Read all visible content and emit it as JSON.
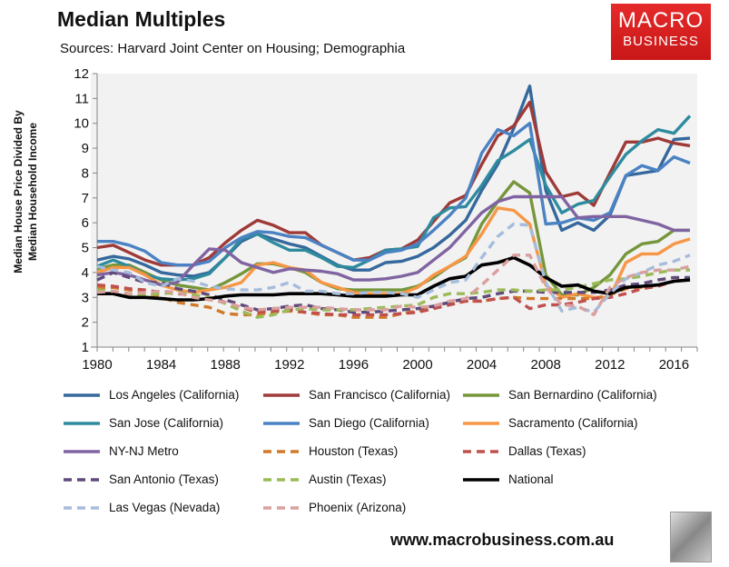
{
  "header": {
    "title": "Median Multiples",
    "subtitle": "Sources: Harvard Joint Center on Housing; Demographia"
  },
  "logo": {
    "line1": "MACRO",
    "line2": "BUSINESS",
    "color": "#d91f1f"
  },
  "footer": {
    "website": "www.macrobusiness.com.au",
    "wolf_icon": "wolf-logo"
  },
  "chart_data": {
    "type": "line",
    "title": "Median Multiples",
    "ylabel": "Median House Price Divided By Median Household Income",
    "xlabel": "",
    "ylim": [
      1,
      12
    ],
    "yticks": [
      "1",
      "2",
      "3",
      "4",
      "5",
      "6",
      "7",
      "8",
      "9",
      "10",
      "11",
      "12"
    ],
    "xticks": [
      "1980",
      "1984",
      "1988",
      "1992",
      "1996",
      "2000",
      "2004",
      "2008",
      "2012",
      "2016"
    ],
    "x": [
      1980,
      1981,
      1982,
      1983,
      1984,
      1985,
      1986,
      1987,
      1988,
      1989,
      1990,
      1991,
      1992,
      1993,
      1994,
      1995,
      1996,
      1997,
      1998,
      1999,
      2000,
      2001,
      2002,
      2003,
      2004,
      2005,
      2006,
      2007,
      2008,
      2009,
      2010,
      2011,
      2012,
      2013,
      2014,
      2015,
      2016,
      2017
    ],
    "grid": false,
    "legend_placement": "bottom",
    "series": [
      {
        "name": "Los Angeles (California)",
        "color": "#35689c",
        "dashed": false,
        "values": [
          4.5,
          4.65,
          4.55,
          4.3,
          4.0,
          3.9,
          3.85,
          4.0,
          4.6,
          5.25,
          5.55,
          5.35,
          5.15,
          5.0,
          4.65,
          4.3,
          4.1,
          4.1,
          4.4,
          4.45,
          4.65,
          5.0,
          5.5,
          6.1,
          7.3,
          8.35,
          9.8,
          11.5,
          7.3,
          5.7,
          6.0,
          5.7,
          6.3,
          7.9,
          8.0,
          8.1,
          9.35,
          9.4
        ]
      },
      {
        "name": "San Francisco (California)",
        "color": "#9e3a38",
        "dashed": false,
        "values": [
          5.0,
          5.1,
          4.8,
          4.5,
          4.3,
          4.3,
          4.3,
          4.6,
          5.2,
          5.7,
          6.1,
          5.9,
          5.6,
          5.6,
          5.1,
          4.8,
          4.5,
          4.6,
          4.9,
          4.95,
          5.3,
          6.05,
          6.8,
          7.1,
          8.35,
          9.5,
          9.9,
          10.85,
          8.05,
          7.05,
          7.2,
          6.7,
          8.0,
          9.25,
          9.25,
          9.4,
          9.2,
          9.1
        ]
      },
      {
        "name": "San Bernardino (California)",
        "color": "#76963c",
        "dashed": false,
        "values": [
          4.15,
          4.3,
          4.3,
          4.0,
          3.7,
          3.5,
          3.4,
          3.3,
          3.6,
          3.95,
          4.35,
          4.35,
          4.2,
          4.0,
          3.6,
          3.35,
          3.3,
          3.3,
          3.3,
          3.3,
          3.45,
          3.8,
          4.25,
          4.6,
          5.95,
          6.85,
          7.65,
          7.2,
          3.9,
          3.1,
          3.1,
          3.4,
          3.9,
          4.75,
          5.15,
          5.25,
          5.7,
          5.7
        ]
      },
      {
        "name": "San Jose (California)",
        "color": "#2e8b9e",
        "dashed": false,
        "values": [
          4.25,
          4.5,
          4.25,
          3.9,
          3.75,
          3.7,
          3.75,
          3.95,
          4.6,
          5.35,
          5.55,
          5.2,
          4.9,
          4.9,
          4.6,
          4.25,
          4.2,
          4.5,
          4.9,
          4.95,
          5.05,
          6.2,
          6.6,
          6.65,
          7.5,
          8.5,
          8.9,
          9.35,
          7.5,
          6.4,
          6.75,
          6.9,
          7.85,
          8.75,
          9.3,
          9.75,
          9.6,
          10.3
        ]
      },
      {
        "name": "San Diego (California)",
        "color": "#4a82c3",
        "dashed": false,
        "values": [
          5.25,
          5.25,
          5.1,
          4.85,
          4.4,
          4.3,
          4.3,
          4.45,
          5.0,
          5.4,
          5.65,
          5.6,
          5.45,
          5.4,
          5.1,
          4.8,
          4.5,
          4.5,
          4.8,
          4.9,
          5.15,
          5.7,
          6.3,
          7.0,
          8.8,
          9.75,
          9.5,
          10.0,
          5.95,
          6.0,
          6.2,
          6.1,
          6.4,
          7.9,
          8.3,
          8.1,
          8.65,
          8.4
        ]
      },
      {
        "name": "Sacramento (California)",
        "color": "#f79646",
        "dashed": false,
        "values": [
          4.0,
          4.2,
          4.2,
          3.9,
          3.5,
          3.3,
          3.2,
          3.3,
          3.4,
          3.6,
          4.3,
          4.4,
          4.2,
          4.1,
          3.6,
          3.4,
          3.2,
          3.15,
          3.15,
          3.15,
          3.4,
          3.9,
          4.25,
          4.65,
          5.55,
          6.6,
          6.5,
          5.95,
          3.5,
          3.0,
          3.15,
          3.0,
          3.0,
          4.4,
          4.75,
          4.75,
          5.15,
          5.35
        ]
      },
      {
        "name": "NY-NJ Metro",
        "color": "#8064a2",
        "dashed": false,
        "values": [
          3.9,
          4.0,
          3.9,
          3.7,
          3.5,
          3.6,
          4.3,
          4.95,
          4.9,
          4.4,
          4.2,
          4.0,
          4.15,
          4.1,
          4.05,
          3.95,
          3.7,
          3.7,
          3.75,
          3.85,
          4.0,
          4.5,
          5.0,
          5.7,
          6.4,
          6.85,
          7.05,
          7.05,
          7.05,
          7.05,
          6.2,
          6.25,
          6.25,
          6.25,
          6.1,
          5.95,
          5.7,
          5.7
        ]
      },
      {
        "name": "Houston (Texas)",
        "color": "#d07a2a",
        "dashed": true,
        "values": [
          3.4,
          3.4,
          3.3,
          3.2,
          3.0,
          2.8,
          2.7,
          2.6,
          2.35,
          2.3,
          2.3,
          2.4,
          2.45,
          2.4,
          2.3,
          2.3,
          2.2,
          2.2,
          2.2,
          2.35,
          2.45,
          2.6,
          2.8,
          2.85,
          2.85,
          2.95,
          3.0,
          2.95,
          2.95,
          2.95,
          2.95,
          2.95,
          3.1,
          3.35,
          3.4,
          3.5,
          3.65,
          3.7
        ]
      },
      {
        "name": "Dallas (Texas)",
        "color": "#c0504d",
        "dashed": true,
        "values": [
          3.5,
          3.45,
          3.35,
          3.3,
          3.2,
          3.15,
          3.1,
          3.0,
          2.8,
          2.6,
          2.4,
          2.45,
          2.5,
          2.4,
          2.35,
          2.3,
          2.3,
          2.3,
          2.3,
          2.35,
          2.4,
          2.55,
          2.7,
          2.85,
          2.85,
          2.95,
          3.0,
          2.55,
          2.7,
          2.7,
          2.8,
          2.95,
          3.0,
          3.15,
          3.35,
          3.45,
          3.65,
          3.75
        ]
      },
      {
        "name": "San Antonio (Texas)",
        "color": "#604a7b",
        "dashed": true,
        "values": [
          3.7,
          4.0,
          3.8,
          3.6,
          3.6,
          3.35,
          3.25,
          3.1,
          2.9,
          2.7,
          2.5,
          2.55,
          2.65,
          2.7,
          2.55,
          2.5,
          2.4,
          2.4,
          2.45,
          2.5,
          2.55,
          2.65,
          2.8,
          2.95,
          3.0,
          3.15,
          3.25,
          3.25,
          3.2,
          3.2,
          3.2,
          3.2,
          3.3,
          3.5,
          3.55,
          3.7,
          3.8,
          3.8
        ]
      },
      {
        "name": "Austin (Texas)",
        "color": "#9bbb59",
        "dashed": true,
        "values": [
          3.3,
          3.25,
          3.1,
          3.1,
          3.15,
          3.2,
          3.1,
          3.0,
          2.75,
          2.45,
          2.2,
          2.3,
          2.5,
          2.55,
          2.5,
          2.5,
          2.5,
          2.55,
          2.6,
          2.65,
          2.7,
          3.0,
          3.15,
          3.15,
          3.2,
          3.3,
          3.3,
          3.25,
          3.3,
          3.3,
          3.4,
          3.55,
          3.7,
          3.75,
          3.85,
          4.0,
          4.1,
          4.1
        ]
      },
      {
        "name": "National",
        "color": "#000000",
        "dashed": false,
        "values": [
          3.15,
          3.15,
          3.0,
          3.0,
          2.95,
          2.9,
          2.9,
          2.95,
          3.05,
          3.1,
          3.1,
          3.1,
          3.15,
          3.15,
          3.15,
          3.1,
          3.05,
          3.05,
          3.05,
          3.1,
          3.1,
          3.45,
          3.75,
          3.85,
          4.3,
          4.4,
          4.6,
          4.3,
          3.8,
          3.45,
          3.5,
          3.25,
          3.15,
          3.4,
          3.45,
          3.5,
          3.65,
          3.7
        ]
      },
      {
        "name": "Las Vegas (Nevada)",
        "color": "#a5bcdb",
        "dashed": true,
        "values": [
          4.25,
          4.1,
          4.0,
          3.6,
          3.45,
          3.75,
          3.65,
          3.45,
          3.35,
          3.3,
          3.3,
          3.4,
          3.6,
          3.25,
          3.25,
          3.15,
          3.15,
          3.2,
          3.2,
          3.15,
          3.0,
          3.3,
          3.6,
          3.7,
          4.6,
          5.45,
          5.95,
          5.9,
          3.6,
          2.45,
          2.6,
          2.4,
          3.15,
          3.75,
          4.0,
          4.3,
          4.45,
          4.7
        ]
      },
      {
        "name": "Phoenix (Arizona)",
        "color": "#d9a09e",
        "dashed": true,
        "values": [
          3.2,
          3.25,
          3.15,
          3.2,
          3.25,
          3.2,
          3.0,
          2.9,
          2.8,
          2.6,
          2.5,
          2.55,
          2.6,
          2.6,
          2.6,
          2.55,
          2.5,
          2.5,
          2.5,
          2.65,
          2.6,
          2.65,
          2.85,
          2.95,
          3.5,
          4.1,
          4.7,
          4.7,
          3.4,
          2.7,
          2.65,
          2.3,
          3.4,
          3.8,
          4.0,
          4.1,
          4.1,
          4.25
        ]
      }
    ]
  }
}
